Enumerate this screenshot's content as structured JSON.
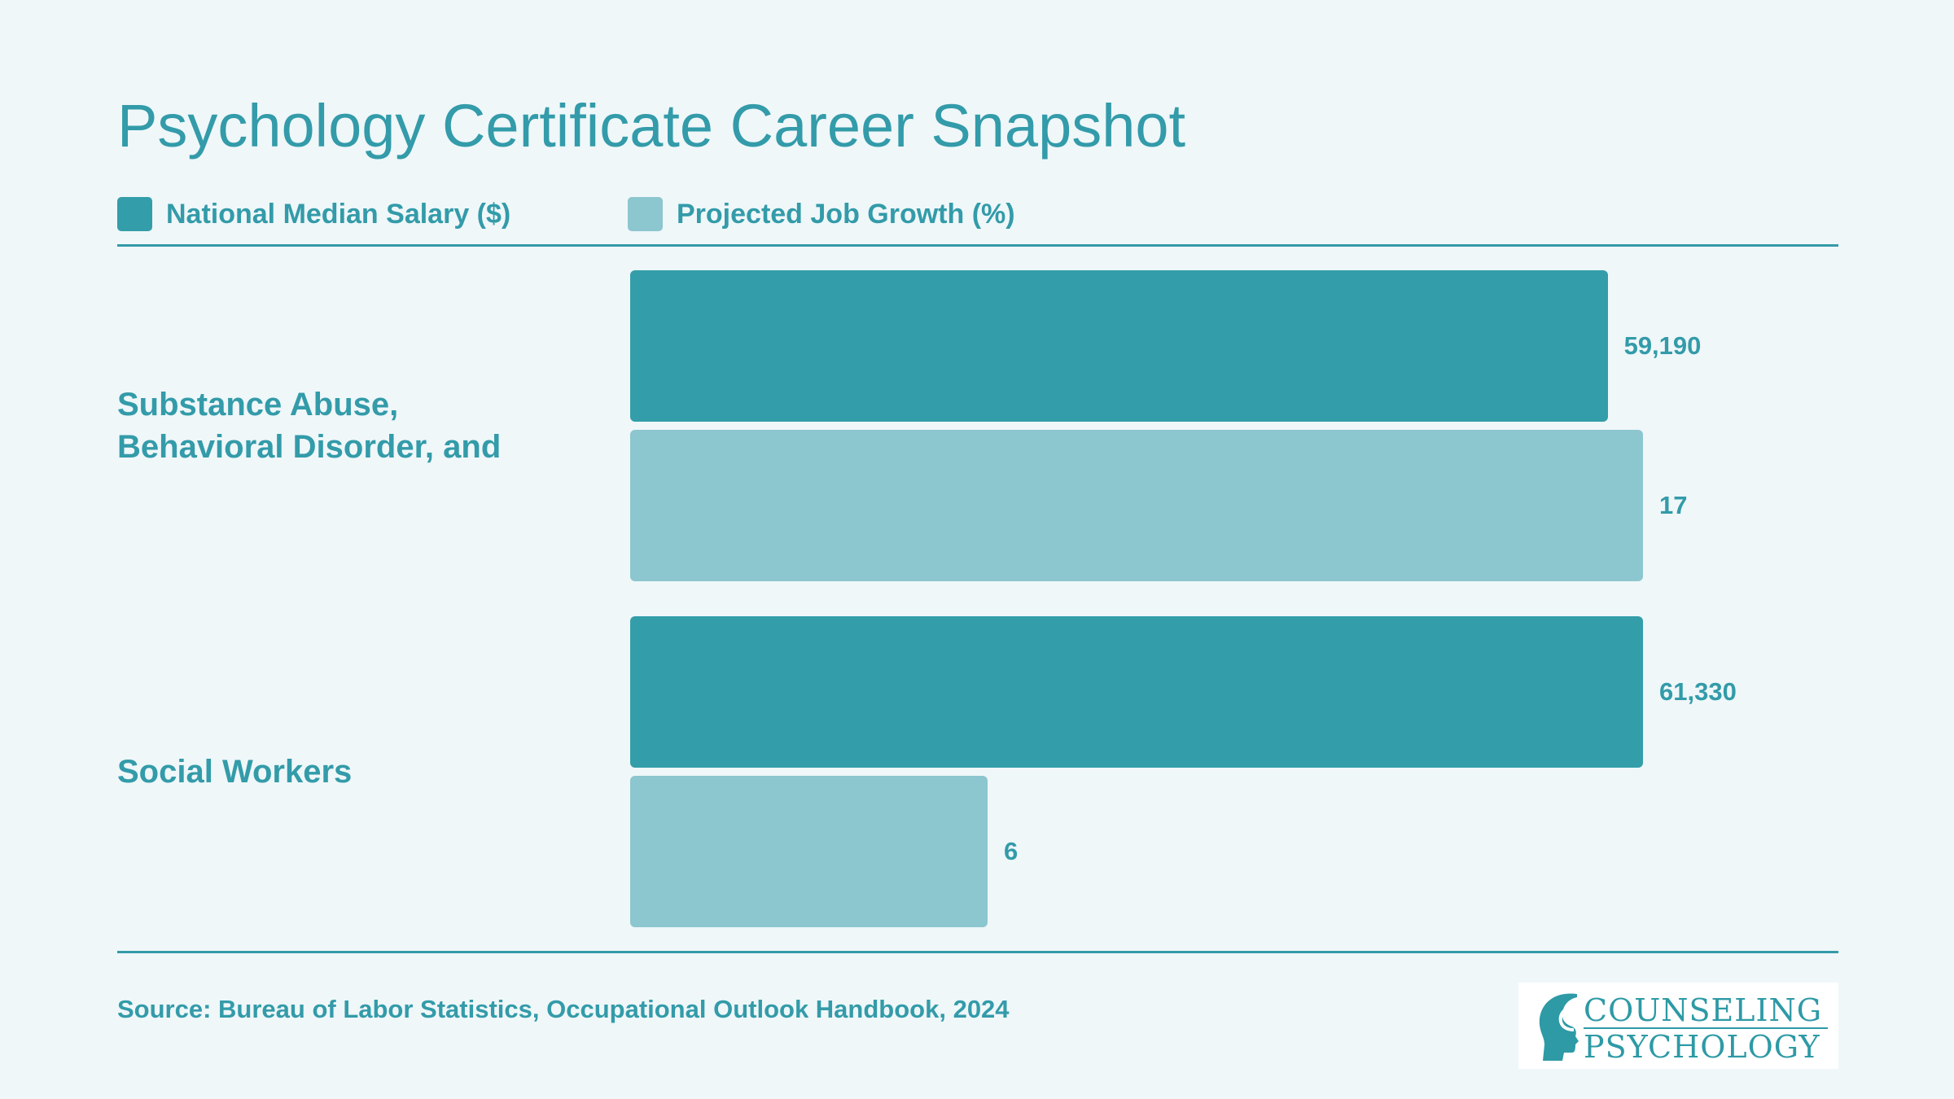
{
  "chart_data": {
    "type": "bar",
    "orientation": "horizontal",
    "title": "Psychology Certificate Career Snapshot",
    "categories": [
      "Substance Abuse,\nBehavioral Disorder, and",
      "Social Workers"
    ],
    "series": [
      {
        "name": "National Median Salary ($)",
        "values": [
          59190,
          61330
        ],
        "labels": [
          "59,190",
          "61,330"
        ],
        "color": "#339ea9"
      },
      {
        "name": "Projected Job Growth (%)",
        "values": [
          17,
          6
        ],
        "labels": [
          "17",
          "6"
        ],
        "color": "#8cc6cf"
      }
    ],
    "legend_position": "top-left",
    "grid": false
  },
  "source": "Source: Bureau of Labor Statistics, Occupational Outlook Handbook, 2024",
  "logo": {
    "line1": "COUNSELING",
    "line2": "PSYCHOLOGY",
    "icon": "head-profile-icon"
  }
}
